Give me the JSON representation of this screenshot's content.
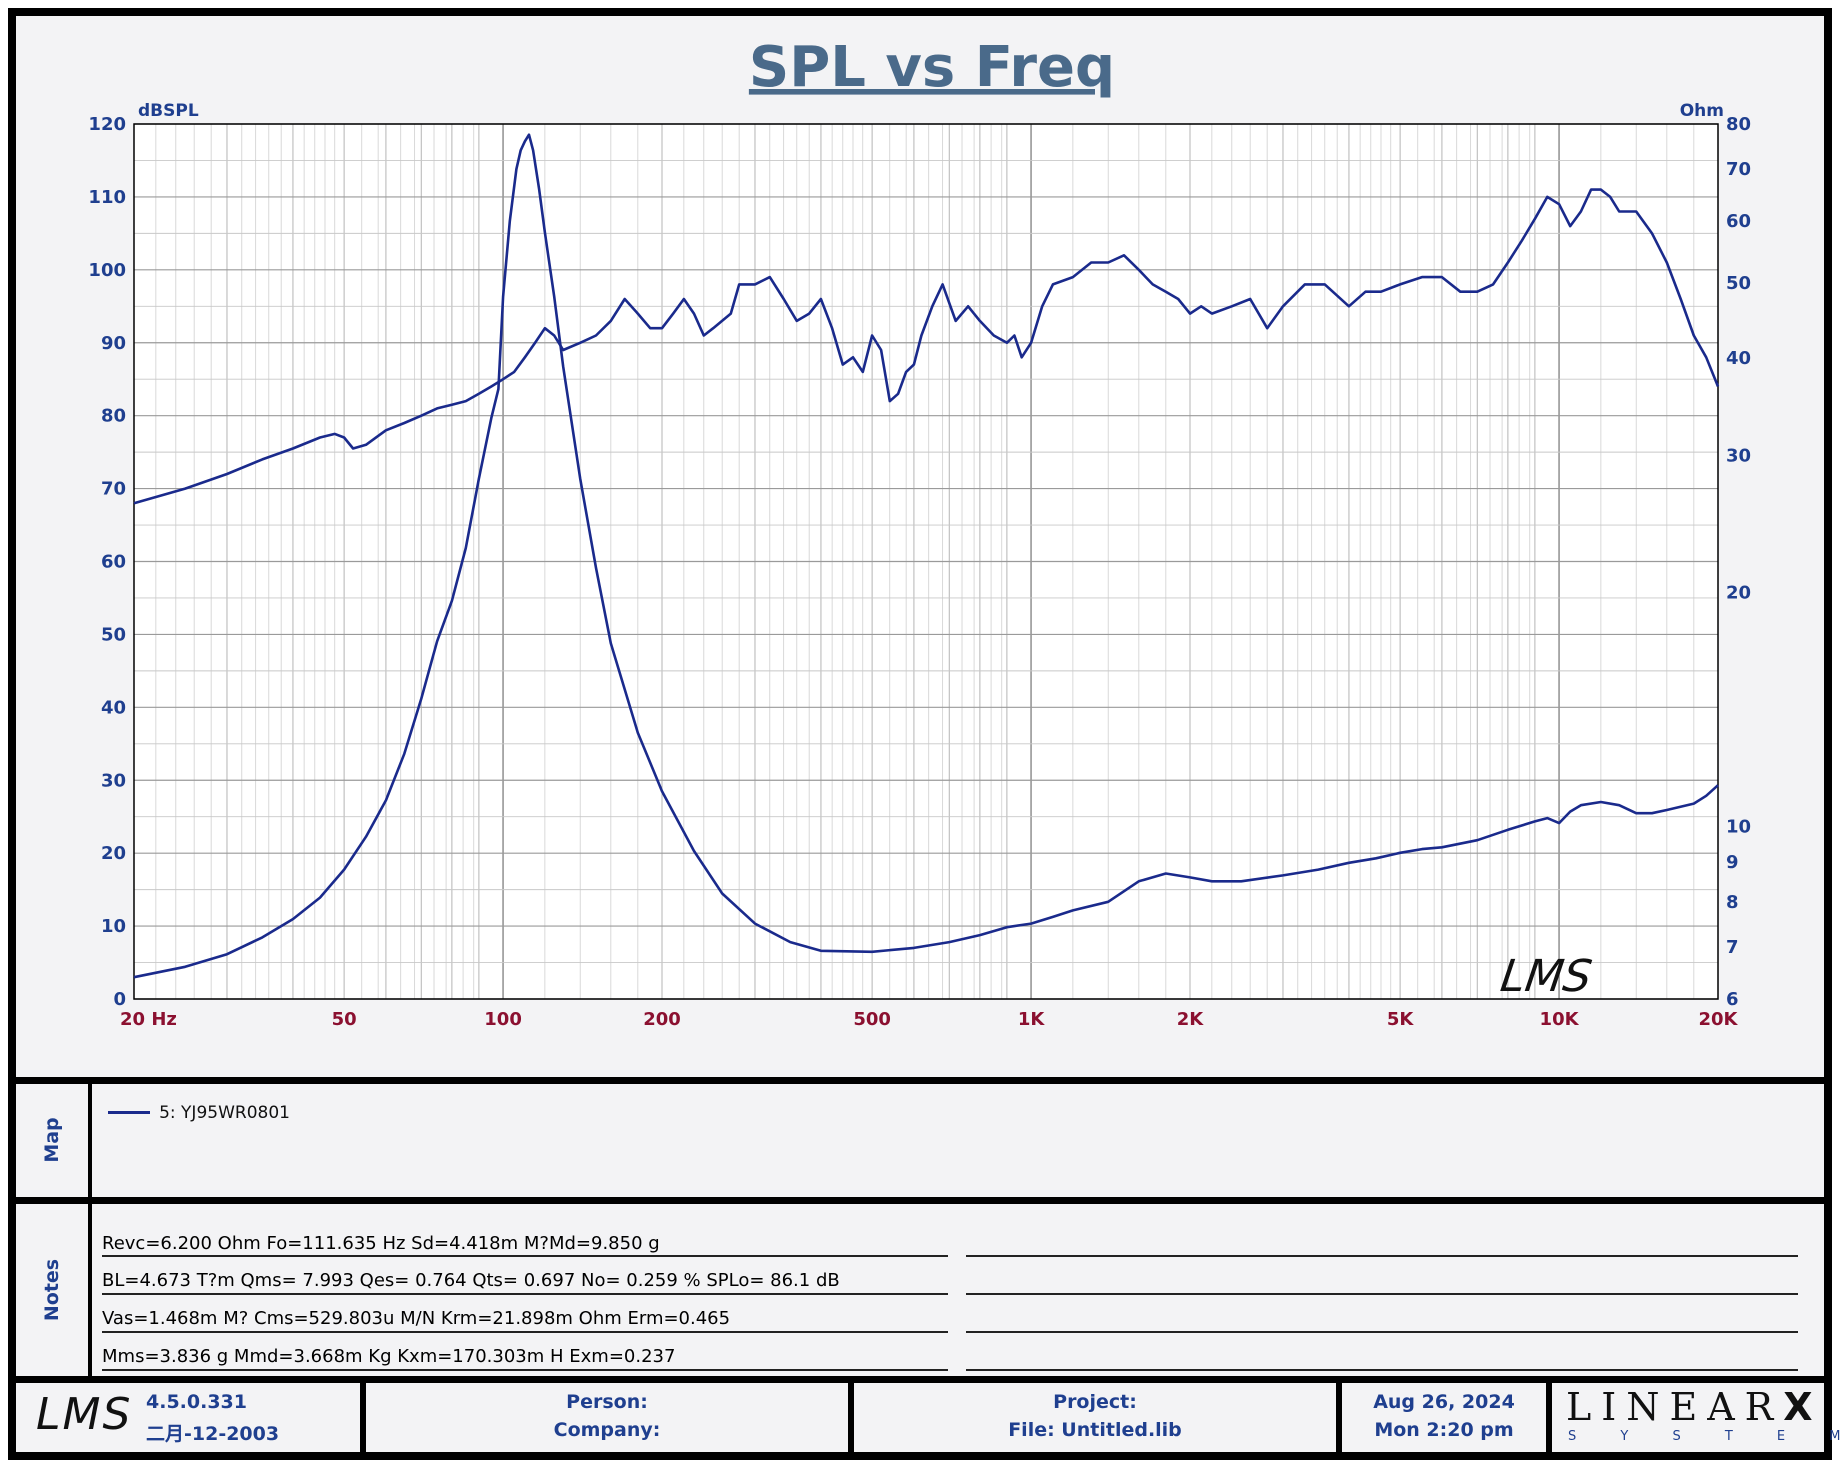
{
  "chart_data": {
    "type": "line",
    "title": "SPL vs Freq",
    "xscale": "log",
    "xlim": [
      20,
      20000
    ],
    "x_ticks": [
      20,
      50,
      100,
      200,
      500,
      1000,
      2000,
      5000,
      10000,
      20000
    ],
    "x_tick_labels": [
      "20  Hz",
      "50",
      "100",
      "200",
      "500",
      "1K",
      "2K",
      "5K",
      "10K",
      "20K"
    ],
    "left_axis": {
      "label": "dBSPL",
      "ylim": [
        0,
        120
      ],
      "ticks": [
        "0",
        "10",
        "20",
        "30",
        "40",
        "50",
        "60",
        "70",
        "80",
        "90",
        "100",
        "110",
        "120"
      ]
    },
    "right_axis": {
      "label": "Ohm",
      "scale": "log",
      "ylim": [
        6,
        80
      ],
      "ticks": [
        "6",
        "7",
        "8",
        "9",
        "10",
        "20",
        "30",
        "40",
        "50",
        "60",
        "70",
        "80"
      ]
    },
    "grid": true,
    "series": [
      {
        "name": "SPL",
        "axis": "left",
        "color": "#1a2a8c",
        "points": [
          [
            20,
            68
          ],
          [
            25,
            70
          ],
          [
            30,
            72
          ],
          [
            35,
            74
          ],
          [
            40,
            75.5
          ],
          [
            45,
            77
          ],
          [
            48,
            77.5
          ],
          [
            50,
            77
          ],
          [
            52,
            75.5
          ],
          [
            55,
            76
          ],
          [
            60,
            78
          ],
          [
            65,
            79
          ],
          [
            70,
            80
          ],
          [
            75,
            81
          ],
          [
            80,
            81.5
          ],
          [
            85,
            82
          ],
          [
            90,
            83
          ],
          [
            95,
            84
          ],
          [
            100,
            85
          ],
          [
            105,
            86
          ],
          [
            110,
            88
          ],
          [
            115,
            90
          ],
          [
            120,
            92
          ],
          [
            125,
            91
          ],
          [
            130,
            89
          ],
          [
            140,
            90
          ],
          [
            150,
            91
          ],
          [
            160,
            93
          ],
          [
            170,
            96
          ],
          [
            180,
            94
          ],
          [
            190,
            92
          ],
          [
            200,
            92
          ],
          [
            210,
            94
          ],
          [
            220,
            96
          ],
          [
            230,
            94
          ],
          [
            240,
            91
          ],
          [
            250,
            92
          ],
          [
            270,
            94
          ],
          [
            280,
            98
          ],
          [
            300,
            98
          ],
          [
            320,
            99
          ],
          [
            340,
            96
          ],
          [
            360,
            93
          ],
          [
            380,
            94
          ],
          [
            400,
            96
          ],
          [
            420,
            92
          ],
          [
            440,
            87
          ],
          [
            460,
            88
          ],
          [
            480,
            86
          ],
          [
            500,
            91
          ],
          [
            520,
            89
          ],
          [
            540,
            82
          ],
          [
            560,
            83
          ],
          [
            580,
            86
          ],
          [
            600,
            87
          ],
          [
            620,
            91
          ],
          [
            650,
            95
          ],
          [
            680,
            98
          ],
          [
            720,
            93
          ],
          [
            760,
            95
          ],
          [
            800,
            93
          ],
          [
            850,
            91
          ],
          [
            900,
            90
          ],
          [
            930,
            91
          ],
          [
            960,
            88
          ],
          [
            1000,
            90
          ],
          [
            1050,
            95
          ],
          [
            1100,
            98
          ],
          [
            1200,
            99
          ],
          [
            1300,
            101
          ],
          [
            1400,
            101
          ],
          [
            1500,
            102
          ],
          [
            1600,
            100
          ],
          [
            1700,
            98
          ],
          [
            1800,
            97
          ],
          [
            1900,
            96
          ],
          [
            2000,
            94
          ],
          [
            2100,
            95
          ],
          [
            2200,
            94
          ],
          [
            2400,
            95
          ],
          [
            2600,
            96
          ],
          [
            2800,
            92
          ],
          [
            3000,
            95
          ],
          [
            3300,
            98
          ],
          [
            3600,
            98
          ],
          [
            4000,
            95
          ],
          [
            4300,
            97
          ],
          [
            4600,
            97
          ],
          [
            5000,
            98
          ],
          [
            5500,
            99
          ],
          [
            6000,
            99
          ],
          [
            6500,
            97
          ],
          [
            7000,
            97
          ],
          [
            7500,
            98
          ],
          [
            8000,
            101
          ],
          [
            8500,
            104
          ],
          [
            9000,
            107
          ],
          [
            9500,
            110
          ],
          [
            10000,
            109
          ],
          [
            10500,
            106
          ],
          [
            11000,
            108
          ],
          [
            11500,
            111
          ],
          [
            12000,
            111
          ],
          [
            12500,
            110
          ],
          [
            13000,
            108
          ],
          [
            14000,
            108
          ],
          [
            15000,
            105
          ],
          [
            16000,
            101
          ],
          [
            17000,
            96
          ],
          [
            18000,
            91
          ],
          [
            19000,
            88
          ],
          [
            20000,
            84
          ]
        ]
      },
      {
        "name": "Impedance",
        "axis": "right",
        "color": "#1a2a8c",
        "points": [
          [
            20,
            6.4
          ],
          [
            25,
            6.6
          ],
          [
            30,
            6.85
          ],
          [
            35,
            7.2
          ],
          [
            40,
            7.6
          ],
          [
            45,
            8.1
          ],
          [
            50,
            8.8
          ],
          [
            55,
            9.7
          ],
          [
            60,
            10.8
          ],
          [
            65,
            12.4
          ],
          [
            70,
            14.6
          ],
          [
            75,
            17.3
          ],
          [
            80,
            19.5
          ],
          [
            85,
            22.8
          ],
          [
            90,
            28
          ],
          [
            95,
            33.5
          ],
          [
            98,
            36.5
          ],
          [
            100,
            48
          ],
          [
            103,
            60
          ],
          [
            106,
            70
          ],
          [
            108,
            74
          ],
          [
            110,
            76
          ],
          [
            112,
            77.5
          ],
          [
            114,
            74
          ],
          [
            117,
            66
          ],
          [
            120,
            58
          ],
          [
            125,
            48
          ],
          [
            130,
            39
          ],
          [
            140,
            28
          ],
          [
            150,
            21.5
          ],
          [
            160,
            17.2
          ],
          [
            180,
            13.2
          ],
          [
            200,
            11.1
          ],
          [
            230,
            9.3
          ],
          [
            260,
            8.2
          ],
          [
            300,
            7.5
          ],
          [
            350,
            7.1
          ],
          [
            400,
            6.92
          ],
          [
            500,
            6.9
          ],
          [
            600,
            6.98
          ],
          [
            700,
            7.1
          ],
          [
            800,
            7.25
          ],
          [
            900,
            7.42
          ],
          [
            1000,
            7.5
          ],
          [
            1100,
            7.65
          ],
          [
            1200,
            7.8
          ],
          [
            1400,
            8.0
          ],
          [
            1600,
            8.5
          ],
          [
            1800,
            8.7
          ],
          [
            2000,
            8.6
          ],
          [
            2200,
            8.5
          ],
          [
            2500,
            8.5
          ],
          [
            3000,
            8.65
          ],
          [
            3500,
            8.8
          ],
          [
            4000,
            8.98
          ],
          [
            4500,
            9.1
          ],
          [
            5000,
            9.25
          ],
          [
            5500,
            9.35
          ],
          [
            6000,
            9.4
          ],
          [
            7000,
            9.6
          ],
          [
            8000,
            9.9
          ],
          [
            9000,
            10.15
          ],
          [
            9500,
            10.25
          ],
          [
            10000,
            10.1
          ],
          [
            10500,
            10.45
          ],
          [
            11000,
            10.65
          ],
          [
            12000,
            10.75
          ],
          [
            13000,
            10.65
          ],
          [
            14000,
            10.4
          ],
          [
            15000,
            10.4
          ],
          [
            16000,
            10.5
          ],
          [
            18000,
            10.7
          ],
          [
            19000,
            10.95
          ],
          [
            20000,
            11.3
          ]
        ]
      }
    ],
    "watermark": "LMS"
  },
  "map": {
    "tab_label": "Map",
    "legend": [
      {
        "label": "5: YJ95WR0801",
        "color": "#1a2a8c"
      }
    ]
  },
  "notes": {
    "tab_label": "Notes",
    "lines": [
      "Revc=6.200 Ohm  Fo=111.635 Hz  Sd=4.418m M?Md=9.850 g",
      "BL=4.673 T?m  Qms= 7.993  Qes= 0.764  Qts= 0.697  No= 0.259 %  SPLo= 86.1 dB",
      "Vas=1.468m M? Cms=529.803u M/N  Krm=21.898m Ohm  Erm=0.465",
      "Mms=3.836 g  Mmd=3.668m Kg  Kxm=170.303m H  Exm=0.237"
    ]
  },
  "footer": {
    "logo": "LMS",
    "version": "4.5.0.331",
    "build_date": "二月-12-2003",
    "person_label": "Person:",
    "company_label": "Company:",
    "project_label": "Project:",
    "file_label": "File: Untitled.lib",
    "date": "Aug 26, 2024",
    "time": "Mon  2:20 pm",
    "brand": "LINEAR",
    "brand_mark": "X",
    "brand_sub": "S Y S T E M S"
  },
  "colors": {
    "axis_text": "#1f3f8f",
    "tick_red": "#8b1030",
    "title": "#4a6a8a"
  }
}
